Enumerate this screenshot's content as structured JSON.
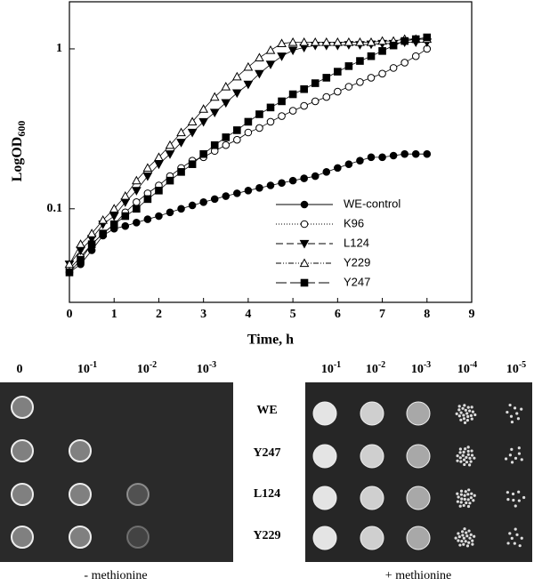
{
  "chart_data": {
    "type": "line",
    "ylabel": {
      "main": "LogOD",
      "sub": "600"
    },
    "xlabel": "Time, h",
    "log_y": true,
    "xlim": [
      0,
      9
    ],
    "xticks": [
      0,
      1,
      2,
      3,
      4,
      5,
      6,
      7,
      8,
      9
    ],
    "ylim": [
      0.026,
      1.97
    ],
    "yticks": [
      0.1,
      1
    ],
    "legend": "lower right",
    "x": [
      0,
      0.25,
      0.5,
      0.75,
      1,
      1.25,
      1.5,
      1.75,
      2,
      2.25,
      2.5,
      2.75,
      3,
      3.25,
      3.5,
      3.75,
      4,
      4.25,
      4.5,
      4.75,
      5,
      5.25,
      5.5,
      5.75,
      6,
      6.25,
      6.5,
      6.75,
      7,
      7.25,
      7.5,
      7.75,
      8
    ],
    "series": [
      {
        "name": "WE-control",
        "color": "#000000",
        "marker": "circle-filled",
        "dash": "none",
        "values": [
          0.04,
          0.045,
          0.055,
          0.068,
          0.075,
          0.078,
          0.082,
          0.086,
          0.09,
          0.095,
          0.1,
          0.105,
          0.11,
          0.115,
          0.12,
          0.125,
          0.13,
          0.135,
          0.14,
          0.145,
          0.15,
          0.155,
          0.16,
          0.17,
          0.18,
          0.19,
          0.2,
          0.21,
          0.21,
          0.215,
          0.22,
          0.22,
          0.22
        ]
      },
      {
        "name": "K96",
        "color": "#000000",
        "marker": "circle-open",
        "dash": "1,2",
        "values": [
          0.042,
          0.05,
          0.06,
          0.07,
          0.08,
          0.095,
          0.11,
          0.125,
          0.14,
          0.16,
          0.18,
          0.2,
          0.21,
          0.23,
          0.25,
          0.27,
          0.3,
          0.32,
          0.35,
          0.38,
          0.41,
          0.44,
          0.47,
          0.5,
          0.54,
          0.58,
          0.62,
          0.66,
          0.7,
          0.76,
          0.82,
          0.9,
          1.0
        ]
      },
      {
        "name": "L124",
        "color": "#000000",
        "marker": "triangle-down-filled",
        "dash": "8,4",
        "values": [
          0.045,
          0.055,
          0.065,
          0.08,
          0.09,
          0.11,
          0.13,
          0.16,
          0.19,
          0.22,
          0.26,
          0.3,
          0.35,
          0.4,
          0.46,
          0.53,
          0.6,
          0.7,
          0.8,
          0.9,
          0.98,
          1.02,
          1.05,
          1.05,
          1.05,
          1.06,
          1.06,
          1.07,
          1.08,
          1.08,
          1.1,
          1.1,
          1.1
        ]
      },
      {
        "name": "Y229",
        "color": "#000000",
        "marker": "triangle-up-open",
        "dash": "6,2,1,2,1,2",
        "values": [
          0.045,
          0.06,
          0.07,
          0.085,
          0.1,
          0.12,
          0.15,
          0.18,
          0.21,
          0.25,
          0.3,
          0.35,
          0.42,
          0.5,
          0.58,
          0.67,
          0.77,
          0.88,
          0.98,
          1.08,
          1.1,
          1.1,
          1.1,
          1.1,
          1.1,
          1.1,
          1.1,
          1.1,
          1.12,
          1.12,
          1.15,
          1.15,
          1.15
        ]
      },
      {
        "name": "Y247",
        "color": "#000000",
        "marker": "square-filled",
        "dash": "12,4",
        "values": [
          0.04,
          0.048,
          0.06,
          0.07,
          0.08,
          0.09,
          0.1,
          0.115,
          0.13,
          0.15,
          0.17,
          0.19,
          0.22,
          0.25,
          0.28,
          0.31,
          0.35,
          0.39,
          0.43,
          0.47,
          0.52,
          0.56,
          0.61,
          0.66,
          0.72,
          0.78,
          0.84,
          0.9,
          0.97,
          1.05,
          1.12,
          1.15,
          1.18
        ]
      }
    ]
  },
  "left_plate": {
    "headers": [
      {
        "base": "0"
      },
      {
        "base": "10",
        "exp": "-1"
      },
      {
        "base": "10",
        "exp": "-2"
      },
      {
        "base": "10",
        "exp": "-3"
      }
    ],
    "caption": "- methionine"
  },
  "right_plate": {
    "headers": [
      {
        "base": "10",
        "exp": "-1"
      },
      {
        "base": "10",
        "exp": "-2"
      },
      {
        "base": "10",
        "exp": "-3"
      },
      {
        "base": "10",
        "exp": "-4"
      },
      {
        "base": "10",
        "exp": "-5"
      }
    ],
    "caption": "+ methionine"
  },
  "strain_labels": [
    "WE",
    "Y247",
    "L124",
    "Y229"
  ]
}
